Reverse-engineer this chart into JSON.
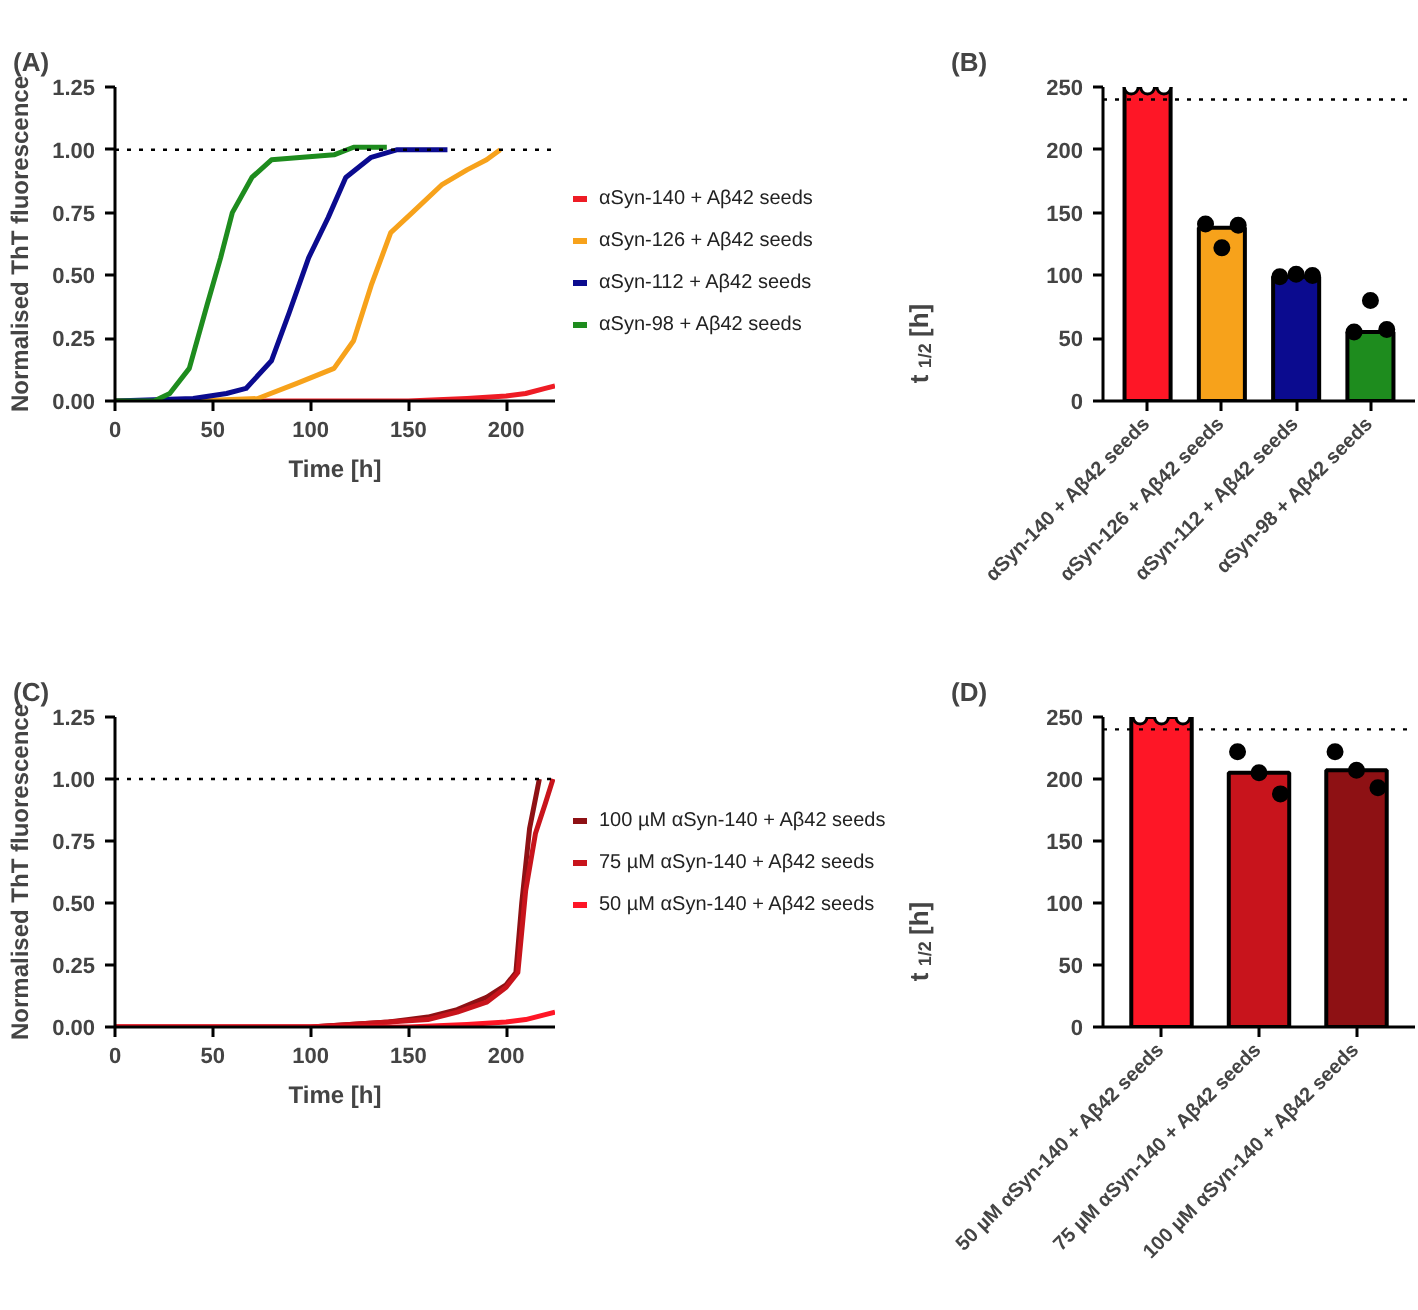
{
  "chart_data": [
    {
      "type": "line",
      "title": "(A)",
      "xlabel": "Time [h]",
      "ylabel": "Normalised ThT fluorescence",
      "xlim": [
        0,
        225
      ],
      "xticks": [
        0,
        50,
        100,
        150,
        200
      ],
      "ylim": [
        0,
        1.25
      ],
      "yticks": [
        {
          "value": 0,
          "label": "0.00"
        },
        {
          "value": 0.25,
          "label": "0.25"
        },
        {
          "value": 0.5,
          "label": "0.50"
        },
        {
          "value": 0.75,
          "label": "0.75"
        },
        {
          "value": 1,
          "label": "1.00"
        },
        {
          "value": 1.25,
          "label": "1.25"
        }
      ],
      "legend": "right",
      "ref_lines": [
        {
          "axis": "y",
          "value": 1,
          "color": "#000000",
          "line_style": "dotted"
        }
      ],
      "series": [
        {
          "name": "αSyn-140 + Aβ42 seeds",
          "color": "#ee1c25",
          "x": [
            0,
            50,
            100,
            150,
            180,
            200,
            210,
            220,
            225
          ],
          "values": [
            0,
            0,
            0,
            0,
            0.01,
            0.02,
            0.03,
            0.05,
            0.06
          ]
        },
        {
          "name": "αSyn-126 + Aβ42 seeds",
          "color": "#f7a21b",
          "x": [
            0,
            40,
            73,
            93,
            112,
            122,
            131,
            141,
            152,
            167,
            180,
            190,
            197
          ],
          "values": [
            0,
            0,
            0.01,
            0.07,
            0.13,
            0.24,
            0.46,
            0.67,
            0.75,
            0.86,
            0.92,
            0.96,
            1.0
          ]
        },
        {
          "name": "αSyn-112 + Aβ42 seeds",
          "color": "#0b0b8f",
          "x": [
            0,
            40,
            57,
            67,
            80,
            89,
            99,
            109,
            118,
            131,
            144,
            170
          ],
          "values": [
            0,
            0.01,
            0.03,
            0.05,
            0.16,
            0.35,
            0.57,
            0.73,
            0.89,
            0.97,
            1.0,
            1.0
          ]
        },
        {
          "name": "αSyn-98 + Aβ42 seeds",
          "color": "#1e8c1e",
          "x": [
            0,
            20,
            28,
            38,
            47,
            54,
            60,
            70,
            80,
            96,
            112,
            122,
            139
          ],
          "values": [
            0,
            0,
            0.03,
            0.13,
            0.38,
            0.57,
            0.75,
            0.89,
            0.96,
            0.97,
            0.98,
            1.01,
            1.01
          ]
        }
      ]
    },
    {
      "type": "bar",
      "title": "(B)",
      "ylabel": "t$_{1/2}$ [h]",
      "categories": [
        "αSyn-140 + Aβ42 seeds",
        "αSyn-126 + Aβ42 seeds",
        "αSyn-112 + Aβ42 seeds",
        "αSyn-98 + Aβ42 seeds"
      ],
      "ylim": [
        0,
        250
      ],
      "yticks": [
        0,
        50,
        100,
        150,
        200,
        250
      ],
      "ref_lines": [
        {
          "axis": "y",
          "value": 240,
          "color": "#000000",
          "line_style": "dotted"
        }
      ],
      "series": [
        {
          "type": "bar",
          "colors": [
            "#fe1626",
            "#f7a21b",
            "#0b0b8f",
            "#1e8c1e"
          ],
          "values": [
            250,
            138,
            99,
            55
          ]
        },
        {
          "type": "scatter",
          "color": "#ffffff",
          "x": [
            "αSyn-140 + Aβ42 seeds",
            "αSyn-140 + Aβ42 seeds",
            "αSyn-140 + Aβ42 seeds"
          ],
          "values": [
            250,
            250,
            250
          ]
        },
        {
          "type": "scatter",
          "color": "#000000",
          "x": [
            "αSyn-126 + Aβ42 seeds",
            "αSyn-126 + Aβ42 seeds",
            "αSyn-126 + Aβ42 seeds",
            "αSyn-112 + Aβ42 seeds",
            "αSyn-112 + Aβ42 seeds",
            "αSyn-112 + Aβ42 seeds",
            "αSyn-98 + Aβ42 seeds",
            "αSyn-98 + Aβ42 seeds",
            "αSyn-98 + Aβ42 seeds"
          ],
          "values": [
            141,
            122,
            140,
            99,
            101,
            100,
            55,
            80,
            57
          ]
        }
      ]
    },
    {
      "type": "line",
      "title": "(C)",
      "xlabel": "Time [h]",
      "ylabel": "Normalised ThT fluorescence",
      "xlim": [
        0,
        225
      ],
      "xticks": [
        0,
        50,
        100,
        150,
        200
      ],
      "ylim": [
        0,
        1.25
      ],
      "yticks": [
        {
          "value": 0,
          "label": "0.00"
        },
        {
          "value": 0.25,
          "label": "0.25"
        },
        {
          "value": 0.5,
          "label": "0.50"
        },
        {
          "value": 0.75,
          "label": "0.75"
        },
        {
          "value": 1,
          "label": "1.00"
        },
        {
          "value": 1.25,
          "label": "1.25"
        }
      ],
      "legend": "right",
      "ref_lines": [
        {
          "axis": "y",
          "value": 1,
          "color": "#000000",
          "line_style": "dotted"
        }
      ],
      "series": [
        {
          "name": "100 µM αSyn-140 + Aβ42 seeds",
          "color": "#8e1114",
          "x": [
            0,
            100,
            140,
            160,
            175,
            190,
            200,
            205,
            208,
            212,
            217
          ],
          "values": [
            0,
            0,
            0.02,
            0.04,
            0.07,
            0.12,
            0.17,
            0.22,
            0.5,
            0.8,
            1.0
          ]
        },
        {
          "name": "75 µM αSyn-140 + Aβ42 seeds",
          "color": "#c8141c",
          "x": [
            0,
            100,
            140,
            160,
            175,
            190,
            200,
            206,
            210,
            215,
            220,
            224
          ],
          "values": [
            0,
            0,
            0.02,
            0.03,
            0.06,
            0.1,
            0.16,
            0.22,
            0.55,
            0.78,
            0.9,
            1.0
          ]
        },
        {
          "name": "50 µM αSyn-140 + Aβ42 seeds",
          "color": "#fe1626",
          "x": [
            0,
            50,
            100,
            150,
            180,
            200,
            210,
            220,
            225
          ],
          "values": [
            0,
            0,
            0,
            0,
            0.01,
            0.02,
            0.03,
            0.05,
            0.06
          ]
        }
      ]
    },
    {
      "type": "bar",
      "title": "(D)",
      "ylabel": "t$_{1/2}$ [h]",
      "categories": [
        "50 µM αSyn-140 + Aβ42 seeds",
        "75 µM αSyn-140 + Aβ42 seeds",
        "100 µM αSyn-140 + Aβ42 seeds"
      ],
      "ylim": [
        0,
        250
      ],
      "yticks": [
        0,
        50,
        100,
        150,
        200,
        250
      ],
      "ref_lines": [
        {
          "axis": "y",
          "value": 240,
          "color": "#000000",
          "line_style": "dotted"
        }
      ],
      "series": [
        {
          "type": "bar",
          "colors": [
            "#fe1626",
            "#c8141c",
            "#8e1114"
          ],
          "values": [
            250,
            205,
            207
          ]
        },
        {
          "type": "scatter",
          "color": "#ffffff",
          "x": [
            "50 µM αSyn-140 + Aβ42 seeds",
            "50 µM αSyn-140 + Aβ42 seeds",
            "50 µM αSyn-140 + Aβ42 seeds"
          ],
          "values": [
            250,
            250,
            250
          ]
        },
        {
          "type": "scatter",
          "color": "#000000",
          "x": [
            "75 µM αSyn-140 + Aβ42 seeds",
            "75 µM αSyn-140 + Aβ42 seeds",
            "75 µM αSyn-140 + Aβ42 seeds",
            "100 µM αSyn-140 + Aβ42 seeds",
            "100 µM αSyn-140 + Aβ42 seeds",
            "100 µM αSyn-140 + Aβ42 seeds"
          ],
          "values": [
            222,
            205,
            188,
            222,
            207,
            193
          ]
        }
      ]
    }
  ]
}
